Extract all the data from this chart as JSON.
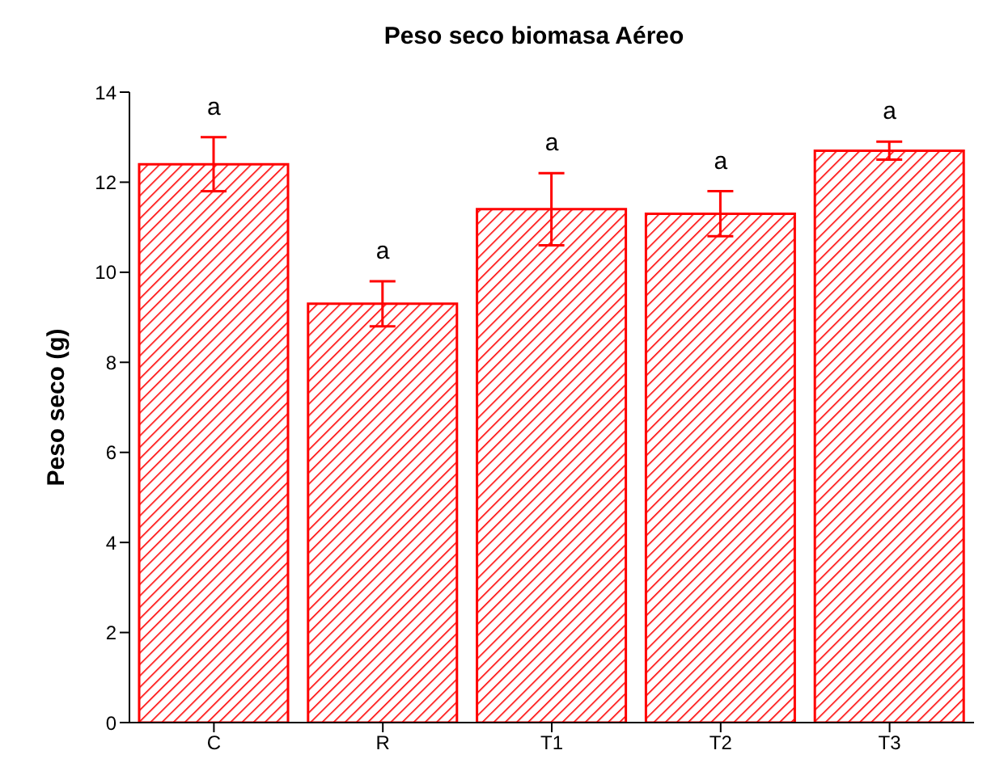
{
  "chart_data": {
    "type": "bar",
    "title": "Peso seco biomasa Aéreo",
    "ylabel": "Peso seco (g)",
    "categories": [
      "C",
      "R",
      "T1",
      "T2",
      "T3"
    ],
    "values": [
      12.4,
      9.3,
      11.4,
      11.3,
      12.7
    ],
    "errors": [
      0.6,
      0.5,
      0.8,
      0.5,
      0.2
    ],
    "color": "#ff0000",
    "ylim": [
      0,
      14
    ],
    "yticks": [
      0,
      2,
      4,
      6,
      8,
      10,
      12,
      14
    ],
    "grid": false,
    "annotations": [
      "a",
      "a",
      "a",
      "a",
      "a"
    ]
  }
}
